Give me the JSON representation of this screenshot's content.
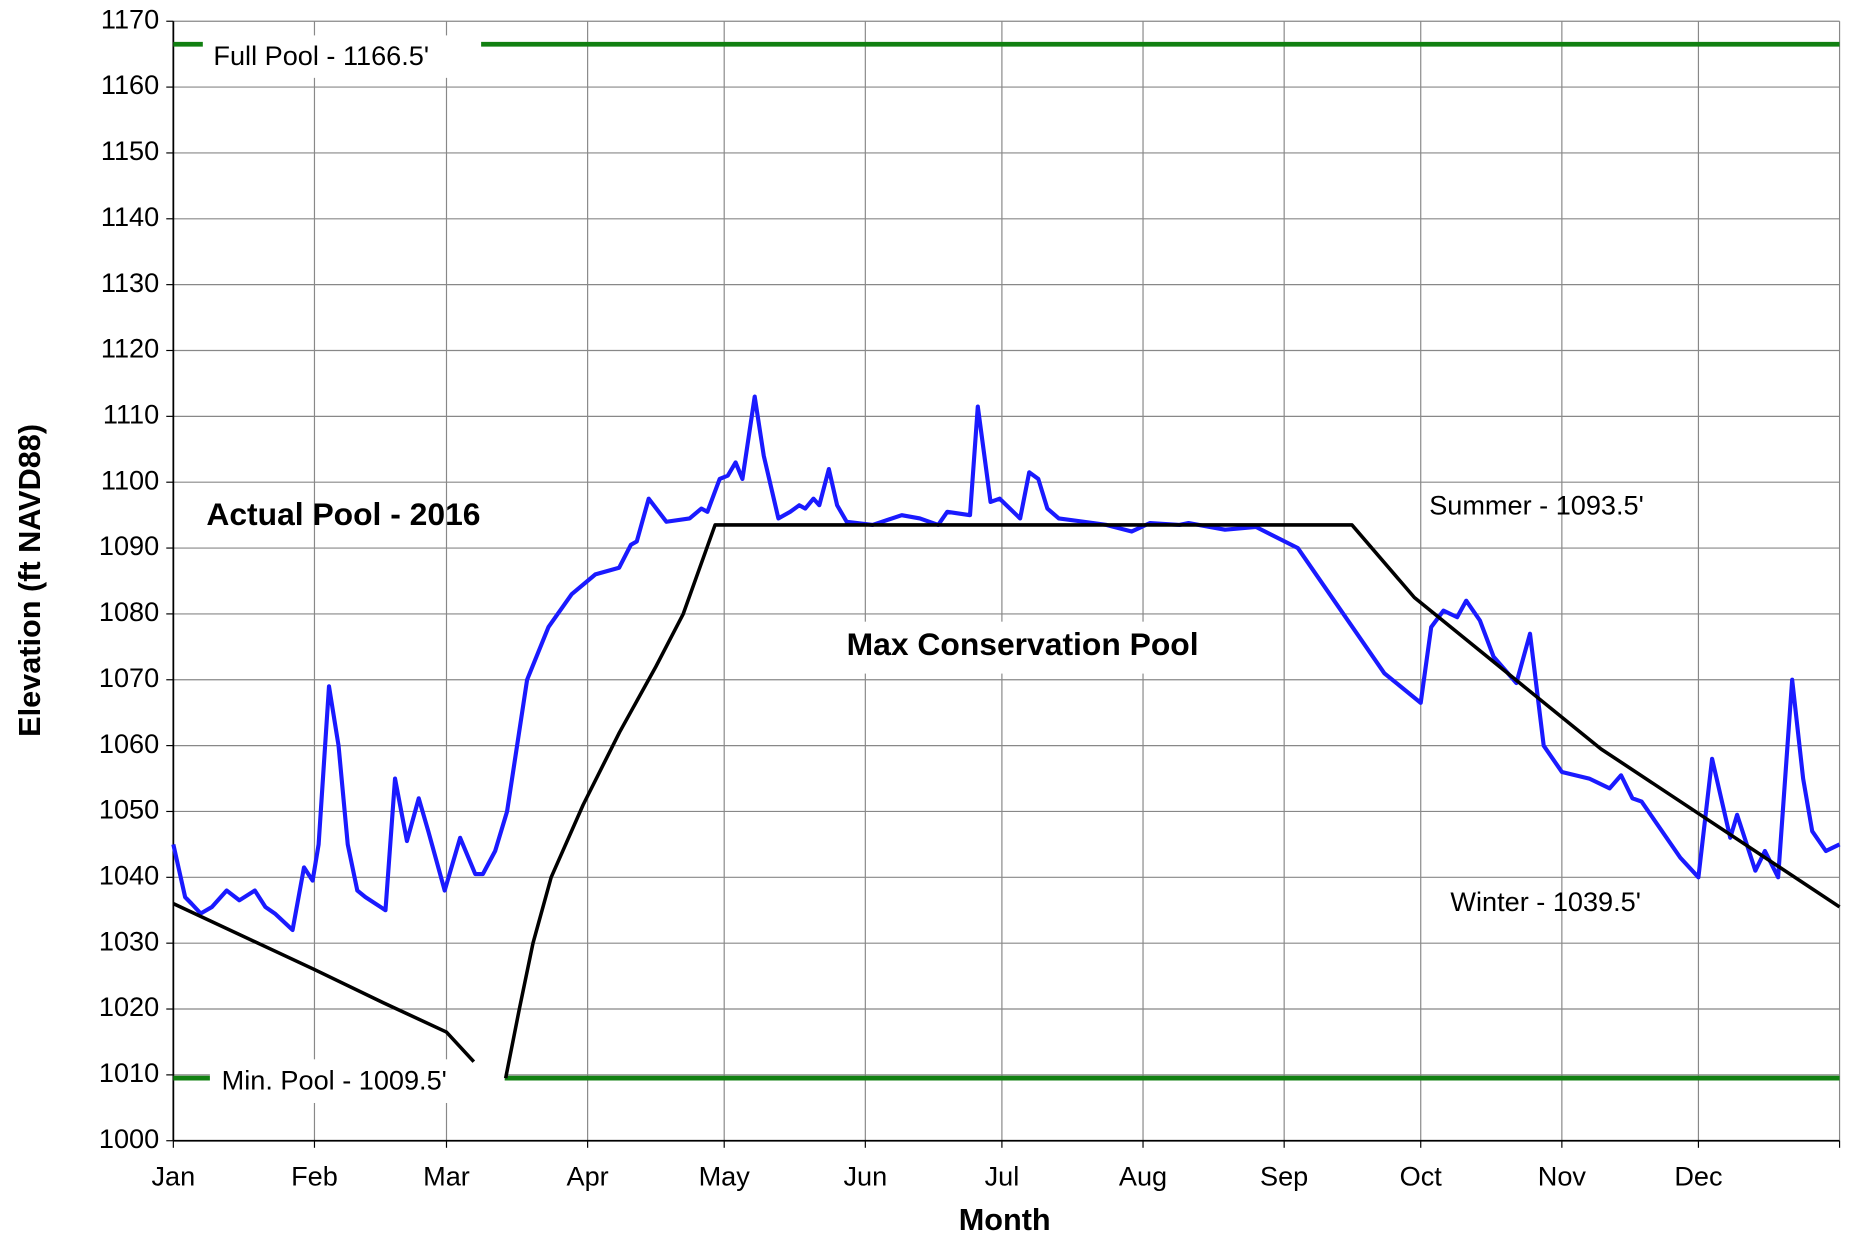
{
  "chart_data": {
    "type": "line",
    "xlabel": "Month",
    "ylabel": "Elevation (ft NAVD88)",
    "xlim": [
      0,
      366
    ],
    "xticks": [
      {
        "value": 0,
        "label": "Jan"
      },
      {
        "value": 31,
        "label": "Feb"
      },
      {
        "value": 60,
        "label": "Mar"
      },
      {
        "value": 91,
        "label": "Apr"
      },
      {
        "value": 121,
        "label": "May"
      },
      {
        "value": 152,
        "label": "Jun"
      },
      {
        "value": 182,
        "label": "Jul"
      },
      {
        "value": 213,
        "label": "Aug"
      },
      {
        "value": 244,
        "label": "Sep"
      },
      {
        "value": 274,
        "label": "Oct"
      },
      {
        "value": 305,
        "label": "Nov"
      },
      {
        "value": 335,
        "label": "Dec"
      },
      {
        "value": 366,
        "label": ""
      }
    ],
    "ylim": [
      1000,
      1170
    ],
    "yticks": [
      1000,
      1010,
      1020,
      1030,
      1040,
      1050,
      1060,
      1070,
      1080,
      1090,
      1100,
      1110,
      1120,
      1130,
      1140,
      1150,
      1160,
      1170
    ],
    "grid": true,
    "reference_lines": [
      {
        "label": "Full Pool - 1166.5'",
        "value": 1166.5,
        "color": "#118011"
      },
      {
        "label": "Min. Pool - 1009.5'",
        "value": 1009.5,
        "color": "#118011"
      }
    ],
    "series": [
      {
        "name": "Actual Pool - 2016",
        "color": "#1a1aff",
        "x": [
          0,
          2.6,
          4,
          6,
          8.5,
          11.7,
          14.5,
          17.9,
          20.2,
          22.3,
          26.2,
          28.7,
          30.6,
          31.9,
          34.2,
          36.3,
          38.3,
          40.4,
          42.2,
          46.6,
          48.7,
          51.3,
          53.9,
          56,
          59.6,
          63,
          66.3,
          68,
          70.7,
          73.3,
          77.7,
          82.4,
          87.5,
          92.7,
          97.9,
          100.5,
          101.8,
          104.4,
          108.3,
          113.4,
          116,
          117.3,
          120,
          121.8,
          123.5,
          125,
          127.7,
          129.7,
          132.9,
          135.5,
          137.5,
          138.8,
          140.6,
          141.9,
          144,
          145.8,
          147.9,
          153.6,
          160,
          164,
          168,
          170,
          175,
          176.7,
          179.5,
          181.5,
          186,
          188,
          190,
          192,
          194.5,
          200,
          205,
          210.5,
          214.5,
          221,
          223,
          231,
          237.8,
          247,
          257,
          266,
          274,
          276.3,
          279,
          282,
          284,
          287,
          290,
          295,
          298,
          301,
          305,
          311,
          315.5,
          318,
          320.5,
          322.5,
          331,
          335,
          338,
          342,
          343.5,
          347.5,
          349.6,
          352.5,
          355.6,
          358,
          360,
          363,
          366
        ],
        "values": [
          1045,
          1037,
          1036,
          1034.5,
          1035.5,
          1038,
          1036.5,
          1038,
          1035.5,
          1034.5,
          1032,
          1041.5,
          1039.5,
          1045,
          1069,
          1060,
          1045,
          1038,
          1037,
          1035,
          1055,
          1045.5,
          1052,
          1047,
          1038,
          1046,
          1040.5,
          1040.5,
          1044,
          1050,
          1070,
          1078,
          1083,
          1086,
          1087,
          1090.5,
          1091,
          1097.5,
          1094,
          1094.5,
          1096,
          1095.5,
          1100.5,
          1101,
          1103,
          1100.5,
          1113,
          1104,
          1094.5,
          1095.5,
          1096.5,
          1096,
          1097.5,
          1096.5,
          1102,
          1096.5,
          1094,
          1093.5,
          1095,
          1094.5,
          1093.5,
          1095.5,
          1095,
          1111.5,
          1097,
          1097.5,
          1094.5,
          1101.5,
          1100.5,
          1096,
          1094.5,
          1094,
          1093.5,
          1092.5,
          1093.8,
          1093.5,
          1093.8,
          1092.8,
          1093.2,
          1090,
          1080,
          1071,
          1066.5,
          1078,
          1080.5,
          1079.5,
          1082,
          1079,
          1073.5,
          1069.5,
          1077,
          1060,
          1056,
          1055,
          1053.5,
          1055.5,
          1052,
          1051.5,
          1043,
          1040,
          1058,
          1046,
          1049.5,
          1041,
          1044,
          1040,
          1070,
          1055,
          1047,
          1044,
          1045
        ]
      },
      {
        "name": "Max Conservation Pool",
        "color": "#000000",
        "x": [
          0,
          31,
          46,
          60,
          66,
          70,
          73,
          76,
          79,
          83,
          90,
          98,
          106,
          112,
          119,
          258.9,
          272.6,
          313.6,
          366
        ],
        "values": [
          1036,
          1026,
          1021,
          1016.5,
          1012,
          null,
          1009.5,
          1020,
          1030,
          1040,
          1051,
          1062,
          1072,
          1080,
          1093.5,
          1093.5,
          1082.5,
          1059.5,
          1035.5
        ]
      }
    ],
    "annotations": [
      "Summer - 1093.5'",
      "Winter - 1039.5'"
    ]
  }
}
